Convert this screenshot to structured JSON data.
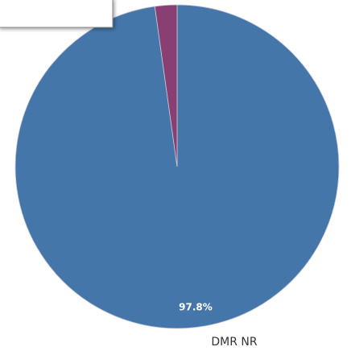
{
  "chart_data": {
    "type": "pie",
    "categories": [
      "DMR NR",
      null
    ],
    "values": [
      97.8,
      2.2
    ],
    "value_labels": [
      "97.8%",
      null
    ],
    "colors": [
      "#4576aa",
      "#8a3f73"
    ]
  }
}
